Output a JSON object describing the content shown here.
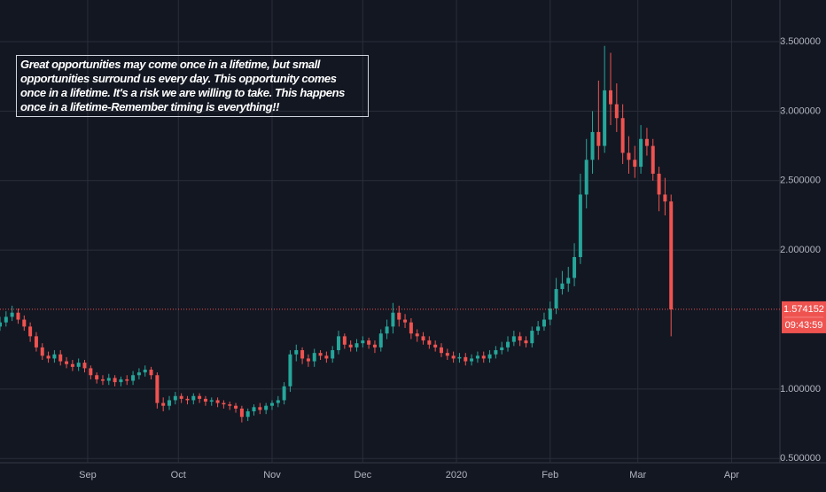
{
  "chart_data": {
    "type": "candlestick",
    "annotation": "Great opportunities may come once in a lifetime, but small opportunities surround us every day. This opportunity comes once in a lifetime. It's a risk we are willing to take. This happens once in a lifetime-Remember timing is everything!!",
    "countdown": "09:43:59",
    "up_color": "#26a69a",
    "down_color": "#ef5350",
    "grid": true,
    "x": [
      -29,
      -27,
      -25,
      -23,
      -21,
      -19,
      -17,
      -15,
      -13,
      -11,
      -9,
      -7,
      -5,
      -3,
      -1,
      1,
      3,
      5,
      7,
      9,
      11,
      13,
      15,
      17,
      19,
      21,
      23,
      25,
      27,
      29,
      31,
      33,
      35,
      37,
      39,
      41,
      43,
      45,
      47,
      49,
      51,
      53,
      55,
      57,
      59,
      61,
      63,
      65,
      67,
      69,
      71,
      73,
      75,
      77,
      79,
      81,
      83,
      85,
      87,
      89,
      91,
      93,
      95,
      97,
      99,
      101,
      103,
      105,
      107,
      109,
      111,
      113,
      115,
      117,
      119,
      121,
      123,
      125,
      127,
      129,
      131,
      133,
      135,
      137,
      139,
      141,
      143,
      145,
      147,
      149,
      151,
      153,
      155,
      157,
      159,
      161,
      163,
      165,
      167,
      169,
      171,
      173,
      175,
      177,
      179,
      181,
      183,
      185,
      187,
      189,
      191,
      193
    ],
    "open": [
      1.45,
      1.48,
      1.52,
      1.55,
      1.5,
      1.45,
      1.38,
      1.3,
      1.24,
      1.22,
      1.25,
      1.2,
      1.18,
      1.16,
      1.19,
      1.15,
      1.1,
      1.07,
      1.06,
      1.08,
      1.05,
      1.07,
      1.06,
      1.1,
      1.12,
      1.14,
      1.1,
      0.9,
      0.88,
      0.92,
      0.95,
      0.93,
      0.92,
      0.95,
      0.93,
      0.91,
      0.92,
      0.9,
      0.89,
      0.88,
      0.86,
      0.8,
      0.84,
      0.87,
      0.85,
      0.88,
      0.9,
      0.92,
      1.02,
      1.25,
      1.28,
      1.22,
      1.2,
      1.26,
      1.24,
      1.22,
      1.28,
      1.38,
      1.32,
      1.3,
      1.33,
      1.35,
      1.32,
      1.3,
      1.4,
      1.45,
      1.55,
      1.5,
      1.48,
      1.4,
      1.38,
      1.35,
      1.32,
      1.3,
      1.26,
      1.24,
      1.22,
      1.23,
      1.2,
      1.22,
      1.24,
      1.22,
      1.25,
      1.28,
      1.3,
      1.34,
      1.38,
      1.35,
      1.33,
      1.42,
      1.45,
      1.5,
      1.58,
      1.72,
      1.76,
      1.8,
      1.95,
      2.4,
      2.65,
      2.85,
      2.75,
      3.15,
      3.05,
      2.95,
      2.7,
      2.65,
      2.6,
      2.8,
      2.75,
      2.55,
      2.4,
      2.35
    ],
    "high": [
      1.52,
      1.56,
      1.6,
      1.58,
      1.53,
      1.48,
      1.41,
      1.33,
      1.27,
      1.28,
      1.28,
      1.23,
      1.21,
      1.22,
      1.21,
      1.17,
      1.12,
      1.1,
      1.11,
      1.1,
      1.09,
      1.1,
      1.13,
      1.15,
      1.17,
      1.16,
      1.12,
      0.94,
      0.95,
      0.98,
      0.97,
      0.95,
      0.97,
      0.97,
      0.95,
      0.94,
      0.94,
      0.92,
      0.91,
      0.9,
      0.88,
      0.86,
      0.89,
      0.9,
      0.9,
      0.92,
      0.95,
      1.05,
      1.28,
      1.32,
      1.3,
      1.25,
      1.29,
      1.28,
      1.27,
      1.31,
      1.42,
      1.4,
      1.35,
      1.36,
      1.38,
      1.37,
      1.35,
      1.43,
      1.5,
      1.62,
      1.6,
      1.54,
      1.51,
      1.43,
      1.41,
      1.38,
      1.35,
      1.33,
      1.29,
      1.27,
      1.26,
      1.26,
      1.25,
      1.27,
      1.27,
      1.28,
      1.31,
      1.34,
      1.38,
      1.42,
      1.41,
      1.38,
      1.45,
      1.49,
      1.55,
      1.63,
      1.8,
      1.85,
      1.88,
      2.05,
      2.55,
      2.8,
      3.0,
      3.22,
      3.47,
      3.42,
      3.2,
      3.05,
      2.82,
      2.75,
      2.9,
      2.88,
      2.8,
      2.6,
      2.52,
      2.4
    ],
    "low": [
      1.42,
      1.45,
      1.49,
      1.47,
      1.42,
      1.34,
      1.27,
      1.21,
      1.19,
      1.19,
      1.17,
      1.15,
      1.13,
      1.13,
      1.12,
      1.07,
      1.04,
      1.03,
      1.03,
      1.02,
      1.02,
      1.03,
      1.03,
      1.07,
      1.09,
      1.07,
      0.86,
      0.84,
      0.85,
      0.89,
      0.9,
      0.89,
      0.89,
      0.9,
      0.88,
      0.88,
      0.87,
      0.86,
      0.85,
      0.83,
      0.76,
      0.77,
      0.81,
      0.82,
      0.82,
      0.85,
      0.87,
      0.89,
      0.98,
      1.2,
      1.18,
      1.16,
      1.16,
      1.21,
      1.19,
      1.19,
      1.25,
      1.29,
      1.27,
      1.27,
      1.3,
      1.29,
      1.26,
      1.27,
      1.36,
      1.4,
      1.45,
      1.44,
      1.36,
      1.34,
      1.32,
      1.29,
      1.27,
      1.23,
      1.21,
      1.19,
      1.19,
      1.17,
      1.17,
      1.19,
      1.19,
      1.19,
      1.22,
      1.25,
      1.27,
      1.31,
      1.31,
      1.3,
      1.3,
      1.39,
      1.42,
      1.46,
      1.54,
      1.68,
      1.7,
      1.74,
      1.9,
      2.3,
      2.55,
      2.65,
      2.7,
      2.9,
      2.85,
      2.62,
      2.55,
      2.52,
      2.55,
      2.68,
      2.5,
      2.28,
      2.25,
      1.38
    ],
    "close": [
      1.48,
      1.52,
      1.55,
      1.5,
      1.45,
      1.38,
      1.3,
      1.24,
      1.22,
      1.25,
      1.2,
      1.18,
      1.16,
      1.19,
      1.15,
      1.1,
      1.07,
      1.06,
      1.08,
      1.05,
      1.07,
      1.06,
      1.1,
      1.12,
      1.14,
      1.1,
      0.9,
      0.88,
      0.92,
      0.95,
      0.93,
      0.92,
      0.95,
      0.93,
      0.91,
      0.92,
      0.9,
      0.89,
      0.88,
      0.86,
      0.8,
      0.84,
      0.87,
      0.85,
      0.88,
      0.9,
      0.92,
      1.02,
      1.25,
      1.28,
      1.22,
      1.2,
      1.26,
      1.24,
      1.22,
      1.28,
      1.38,
      1.32,
      1.3,
      1.33,
      1.35,
      1.32,
      1.3,
      1.4,
      1.45,
      1.55,
      1.5,
      1.48,
      1.4,
      1.38,
      1.35,
      1.32,
      1.3,
      1.26,
      1.24,
      1.22,
      1.23,
      1.2,
      1.22,
      1.24,
      1.22,
      1.25,
      1.28,
      1.3,
      1.34,
      1.38,
      1.35,
      1.33,
      1.42,
      1.45,
      1.5,
      1.58,
      1.72,
      1.76,
      1.8,
      1.95,
      2.4,
      2.65,
      2.85,
      2.75,
      3.15,
      3.05,
      2.95,
      2.7,
      2.65,
      2.6,
      2.8,
      2.75,
      2.55,
      2.4,
      2.35,
      1.574152
    ],
    "xlim": [
      -29,
      229
    ],
    "ylim": [
      0.47,
      3.8
    ],
    "xticks": [
      {
        "value": 0,
        "label": "Sep"
      },
      {
        "value": 30,
        "label": "Oct"
      },
      {
        "value": 61,
        "label": "Nov"
      },
      {
        "value": 91,
        "label": "Dec"
      },
      {
        "value": 122,
        "label": "2020"
      },
      {
        "value": 153,
        "label": "Feb"
      },
      {
        "value": 182,
        "label": "Mar"
      },
      {
        "value": 213,
        "label": "Apr"
      }
    ],
    "yticks": [
      {
        "value": 0.5,
        "label": "0.500000"
      },
      {
        "value": 1.0,
        "label": "1.000000"
      },
      {
        "value": 2.0,
        "label": "2.000000"
      },
      {
        "value": 2.5,
        "label": "2.500000"
      },
      {
        "value": 3.0,
        "label": "3.000000"
      },
      {
        "value": 3.5,
        "label": "3.500000"
      }
    ]
  }
}
